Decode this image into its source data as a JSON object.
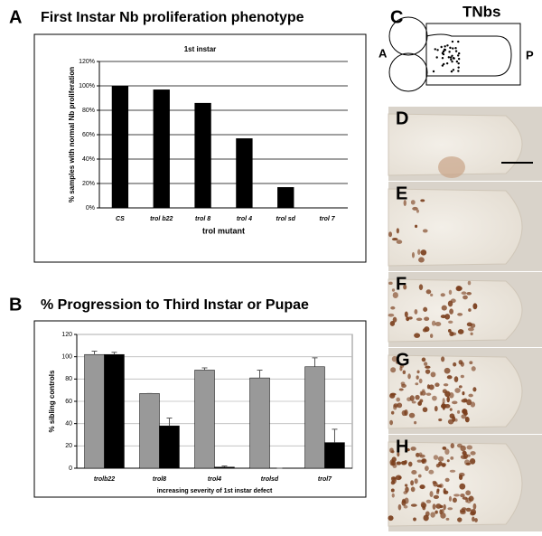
{
  "panels": [
    "A",
    "B",
    "C",
    "D",
    "E",
    "F",
    "G",
    "H"
  ],
  "diagram": {
    "label": "TNbs",
    "anterior": "A",
    "posterior": "P"
  },
  "chart_data": [
    {
      "type": "bar",
      "title": "First Instar Nb proliferation phenotype",
      "subtitle": "1st instar",
      "y_label": "% samples with normal Nb proliferation",
      "x_label": "trol mutant",
      "categories": [
        "CS",
        "trol b22",
        "trol 8",
        "trol 4",
        "trol sd",
        "trol 7"
      ],
      "values": [
        100,
        97,
        86,
        57,
        17,
        0
      ],
      "color": "#000000",
      "ylim": [
        0,
        120
      ],
      "yticks": [
        {
          "value": 0,
          "label": "0%"
        },
        {
          "value": 20,
          "label": "20%"
        },
        {
          "value": 40,
          "label": "40%"
        },
        {
          "value": 60,
          "label": "60%"
        },
        {
          "value": 80,
          "label": "80%"
        },
        {
          "value": 100,
          "label": "100%"
        },
        {
          "value": 120,
          "label": "120%"
        }
      ],
      "grid": true
    },
    {
      "type": "bar",
      "title": "% Progression to Third Instar or Pupae",
      "y_label": "% sibling controls",
      "x_label": "increasing severity of 1st instar defect",
      "categories": [
        "trolb22",
        "trol8",
        "trol4",
        "trolsd",
        "trol7"
      ],
      "series": [
        {
          "color": "#999999",
          "values": [
            102,
            67,
            88,
            81,
            91
          ],
          "errors": [
            3,
            0,
            2,
            7,
            8
          ]
        },
        {
          "color": "#000000",
          "values": [
            102,
            38,
            1,
            0,
            23
          ],
          "errors": [
            2,
            7,
            1,
            0,
            12
          ]
        }
      ],
      "ylim": [
        0,
        120
      ],
      "yticks": [
        0,
        20,
        40,
        60,
        80,
        100,
        120
      ],
      "grid": true
    }
  ]
}
